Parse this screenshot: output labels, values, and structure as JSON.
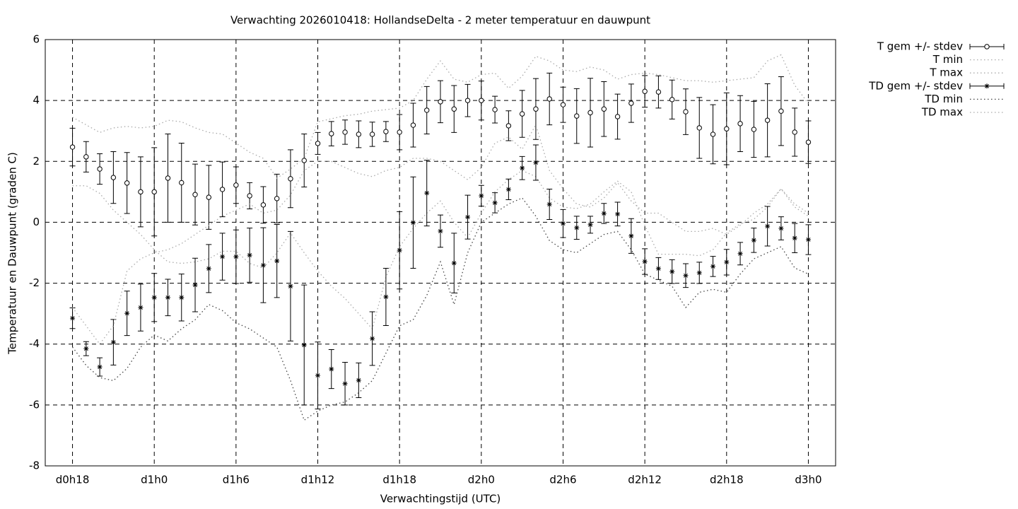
{
  "chart_data": {
    "type": "errorbar_line",
    "title": "Verwachting 2026010418: HollandseDelta - 2 meter temperatuur en dauwpunt",
    "x_label": "Verwachtingstijd (UTC)",
    "y_label": "Temperatuur en Dauwpunt (graden C)",
    "x": [
      0,
      1,
      2,
      3,
      4,
      5,
      6,
      7,
      8,
      9,
      10,
      11,
      12,
      13,
      14,
      15,
      16,
      17,
      18,
      19,
      20,
      21,
      22,
      23,
      24,
      25,
      26,
      27,
      28,
      29,
      30,
      31,
      32,
      33,
      34,
      35,
      36,
      37,
      38,
      39,
      40,
      41,
      42,
      43,
      44,
      45,
      46,
      47,
      48,
      49,
      50,
      51,
      52,
      53,
      54
    ],
    "xlim": [
      -2,
      56
    ],
    "xticks": [
      {
        "value": 0,
        "label": "d0h18"
      },
      {
        "value": 6,
        "label": "d1h0"
      },
      {
        "value": 12,
        "label": "d1h6"
      },
      {
        "value": 18,
        "label": "d1h12"
      },
      {
        "value": 24,
        "label": "d1h18"
      },
      {
        "value": 30,
        "label": "d2h0"
      },
      {
        "value": 36,
        "label": "d2h6"
      },
      {
        "value": 42,
        "label": "d2h12"
      },
      {
        "value": 48,
        "label": "d2h18"
      },
      {
        "value": 54,
        "label": "d3h0"
      }
    ],
    "ylim": [
      -8,
      6
    ],
    "yticks": [
      -8,
      -6,
      -4,
      -2,
      0,
      2,
      4,
      6
    ],
    "grid": true,
    "legend": "outside-top-right",
    "series": [
      {
        "name": "T gem +/- stdev",
        "kind": "errorbars",
        "marker": "circle",
        "color": "#000000",
        "values": [
          2.47,
          2.15,
          1.75,
          1.47,
          1.29,
          1.0,
          1.0,
          1.45,
          1.3,
          0.91,
          0.82,
          1.08,
          1.22,
          0.87,
          0.57,
          0.78,
          1.43,
          2.03,
          2.59,
          2.91,
          2.96,
          2.89,
          2.89,
          2.98,
          2.96,
          3.19,
          3.68,
          3.96,
          3.72,
          4.0,
          4.0,
          3.7,
          3.17,
          3.56,
          3.72,
          4.05,
          3.86,
          3.49,
          3.6,
          3.72,
          3.47,
          3.91,
          4.3,
          4.28,
          4.03,
          3.63,
          3.1,
          2.89,
          3.07,
          3.24,
          3.05,
          3.35,
          3.65,
          2.96,
          2.63
        ],
        "errors": [
          0.62,
          0.5,
          0.5,
          0.85,
          1.0,
          1.15,
          1.45,
          1.45,
          1.3,
          1.0,
          1.05,
          0.9,
          0.6,
          0.43,
          0.6,
          0.8,
          0.95,
          0.87,
          0.36,
          0.4,
          0.4,
          0.44,
          0.4,
          0.33,
          0.58,
          0.72,
          0.78,
          0.69,
          0.77,
          0.53,
          0.64,
          0.44,
          0.49,
          0.77,
          1.0,
          0.85,
          0.58,
          0.9,
          1.13,
          0.9,
          0.74,
          0.63,
          0.52,
          0.53,
          0.64,
          0.75,
          1.0,
          0.97,
          1.18,
          0.92,
          0.92,
          1.2,
          1.13,
          0.79,
          0.7
        ]
      },
      {
        "name": "T min",
        "kind": "line",
        "color": "#aaaaaa",
        "values": [
          1.2,
          1.2,
          0.95,
          0.4,
          0.0,
          -0.4,
          -0.9,
          -1.3,
          -1.35,
          -1.3,
          -1.2,
          -0.95,
          -0.95,
          -1.35,
          -1.5,
          -1.0,
          -0.35,
          -1.0,
          -1.6,
          -2.1,
          -2.5,
          -3.0,
          -3.5,
          -1.8,
          -0.8,
          -0.2,
          0.3,
          0.7,
          0.0,
          -0.5,
          0.3,
          1.0,
          1.4,
          1.7,
          1.5,
          0.8,
          0.5,
          0.45,
          0.6,
          1.0,
          1.35,
          1.0,
          -0.1,
          -1.05,
          -1.05,
          -1.05,
          -1.1,
          -0.9,
          -0.35,
          -0.05,
          0.1,
          0.5,
          1.1,
          0.5,
          0.2
        ]
      },
      {
        "name": "T max",
        "kind": "line",
        "color": "#aaaaaa",
        "values": [
          3.45,
          3.2,
          2.95,
          3.1,
          3.15,
          3.1,
          3.15,
          3.35,
          3.3,
          3.1,
          2.95,
          2.9,
          2.6,
          2.3,
          2.1,
          1.45,
          1.75,
          2.1,
          3.3,
          3.4,
          3.5,
          3.55,
          3.65,
          3.7,
          3.75,
          4.0,
          4.7,
          5.3,
          4.7,
          4.6,
          4.85,
          4.9,
          4.4,
          4.8,
          5.45,
          5.3,
          5.0,
          4.95,
          5.1,
          5.0,
          4.7,
          4.85,
          4.9,
          4.85,
          4.75,
          4.65,
          4.65,
          4.6,
          4.65,
          4.7,
          4.75,
          5.3,
          5.5,
          4.5,
          3.9
        ]
      },
      {
        "name": "TD gem +/- stdev",
        "kind": "errorbars",
        "marker": "star",
        "color": "#000000",
        "values": [
          -3.15,
          -4.15,
          -4.75,
          -3.94,
          -2.99,
          -2.8,
          -2.47,
          -2.47,
          -2.47,
          -2.06,
          -1.52,
          -1.13,
          -1.13,
          -1.08,
          -1.41,
          -1.27,
          -2.1,
          -4.03,
          -5.03,
          -4.82,
          -5.3,
          -5.19,
          -3.82,
          -2.45,
          -0.92,
          -0.01,
          0.96,
          -0.29,
          -1.34,
          0.17,
          0.87,
          0.64,
          1.08,
          1.78,
          1.96,
          0.59,
          -0.04,
          -0.18,
          -0.08,
          0.29,
          0.27,
          -0.45,
          -1.29,
          -1.52,
          -1.62,
          -1.75,
          -1.66,
          -1.45,
          -1.31,
          -1.03,
          -0.59,
          -0.13,
          -0.2,
          -0.52,
          -0.57
        ],
        "errors": [
          0.34,
          0.23,
          0.3,
          0.75,
          0.73,
          0.77,
          0.79,
          0.6,
          0.77,
          0.88,
          0.79,
          0.77,
          0.88,
          0.89,
          1.23,
          1.2,
          1.8,
          1.97,
          1.1,
          0.64,
          0.7,
          0.57,
          0.88,
          0.94,
          1.27,
          1.5,
          1.08,
          0.53,
          0.98,
          0.72,
          0.34,
          0.33,
          0.34,
          0.38,
          0.58,
          0.5,
          0.46,
          0.38,
          0.28,
          0.33,
          0.39,
          0.57,
          0.42,
          0.36,
          0.39,
          0.39,
          0.35,
          0.33,
          0.42,
          0.37,
          0.4,
          0.65,
          0.38,
          0.48,
          0.49
        ]
      },
      {
        "name": "TD min",
        "kind": "line",
        "color": "#444444",
        "values": [
          -4.1,
          -4.7,
          -5.1,
          -5.2,
          -4.8,
          -4.1,
          -3.7,
          -3.9,
          -3.5,
          -3.2,
          -2.7,
          -2.9,
          -3.3,
          -3.5,
          -3.8,
          -4.1,
          -5.2,
          -6.5,
          -6.2,
          -6.0,
          -5.9,
          -5.6,
          -5.2,
          -4.3,
          -3.4,
          -3.2,
          -2.4,
          -1.3,
          -2.7,
          -1.0,
          0.0,
          0.3,
          0.6,
          0.8,
          0.2,
          -0.6,
          -0.9,
          -1.0,
          -0.7,
          -0.4,
          -0.3,
          -0.9,
          -1.7,
          -1.9,
          -2.1,
          -2.8,
          -2.3,
          -2.2,
          -2.3,
          -1.7,
          -1.2,
          -1.0,
          -0.8,
          -1.5,
          -1.7
        ]
      },
      {
        "name": "TD max",
        "kind": "line",
        "color": "#aaaaaa",
        "values": [
          -2.8,
          -3.4,
          -4.0,
          -3.4,
          -1.6,
          -1.2,
          -1.0,
          -0.9,
          -0.7,
          -0.4,
          -0.1,
          0.2,
          0.4,
          0.6,
          0.3,
          0.4,
          0.9,
          1.7,
          2.0,
          2.0,
          1.8,
          1.6,
          1.5,
          1.7,
          1.8,
          2.1,
          2.1,
          2.0,
          1.7,
          1.4,
          1.8,
          2.6,
          2.8,
          2.4,
          3.2,
          1.7,
          1.1,
          0.6,
          0.5,
          0.8,
          1.3,
          0.7,
          0.3,
          0.3,
          0.0,
          -0.3,
          -0.3,
          -0.2,
          -0.4,
          -0.1,
          0.3,
          0.6,
          1.1,
          0.6,
          0.3
        ]
      }
    ]
  }
}
